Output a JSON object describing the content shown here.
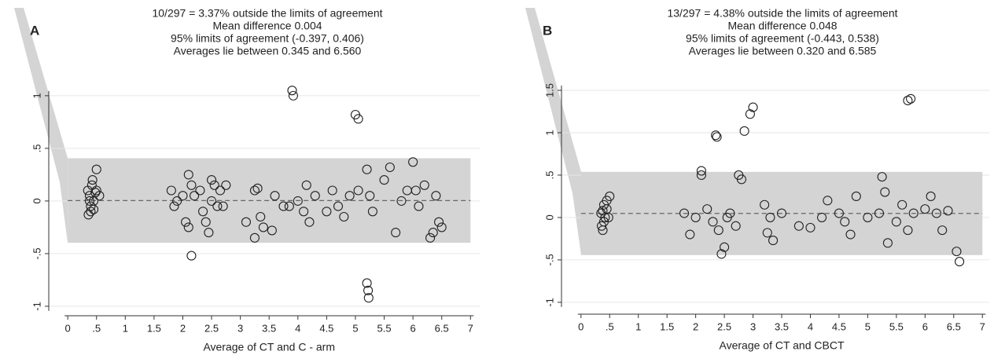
{
  "chart_data": [
    {
      "type": "scatter",
      "panel_label": "A",
      "annotations": [
        "10/297 =   3.37% outside the limits of agreement",
        "Mean difference  0.004",
        "95% limits of agreement (-0.397, 0.406)",
        "Averages lie between 0.345 and 6.560"
      ],
      "xlabel": "Average of CT and C - arm",
      "x": [
        0.35,
        0.38,
        0.4,
        0.42,
        0.45,
        0.4,
        0.36,
        0.48,
        0.5,
        0.55,
        0.43,
        0.38,
        0.5,
        0.45,
        1.8,
        1.85,
        1.9,
        2.0,
        2.05,
        2.1,
        2.1,
        2.15,
        2.15,
        2.2,
        2.3,
        2.35,
        2.4,
        2.45,
        2.5,
        2.5,
        2.55,
        2.6,
        2.65,
        2.7,
        2.75,
        3.1,
        3.25,
        3.25,
        3.3,
        3.35,
        3.4,
        3.55,
        3.6,
        3.75,
        3.9,
        3.92,
        3.85,
        4.0,
        4.1,
        4.15,
        4.2,
        4.3,
        4.5,
        4.6,
        4.7,
        4.8,
        4.9,
        5.0,
        5.05,
        5.05,
        5.2,
        5.22,
        5.23,
        5.2,
        5.25,
        5.3,
        5.5,
        5.6,
        5.7,
        5.8,
        5.9,
        6.0,
        6.05,
        6.1,
        6.2,
        6.3,
        6.35,
        6.4,
        6.45,
        6.5
      ],
      "values": [
        0.1,
        0.05,
        -0.1,
        0.15,
        0.0,
        -0.05,
        -0.13,
        0.08,
        0.3,
        0.05,
        0.2,
        0.0,
        0.1,
        -0.08,
        0.1,
        -0.05,
        0.0,
        0.05,
        -0.2,
        -0.25,
        0.25,
        0.15,
        -0.52,
        0.05,
        0.1,
        -0.1,
        -0.2,
        -0.3,
        0.2,
        0.0,
        0.15,
        -0.05,
        0.1,
        -0.05,
        0.15,
        -0.2,
        0.1,
        -0.35,
        0.12,
        -0.15,
        -0.25,
        -0.28,
        0.05,
        -0.05,
        1.05,
        1.0,
        -0.05,
        0.0,
        -0.1,
        0.15,
        -0.2,
        0.05,
        -0.1,
        0.1,
        -0.05,
        -0.15,
        0.05,
        0.82,
        0.78,
        0.1,
        -0.78,
        -0.85,
        -0.92,
        0.3,
        0.05,
        -0.1,
        0.2,
        0.32,
        -0.3,
        0.0,
        0.1,
        0.37,
        0.1,
        -0.05,
        0.15,
        -0.35,
        -0.3,
        0.05,
        -0.2,
        -0.25
      ],
      "mean_line": 0.004,
      "limits": [
        -0.397,
        0.406
      ],
      "xlim": [
        -0.33,
        7.16
      ],
      "ylim": [
        -1.09,
        1.76
      ],
      "xticks": [
        0,
        {
          "value": 0.5,
          "label": ".5"
        },
        1,
        1.5,
        2,
        2.5,
        3,
        3.5,
        4,
        4.5,
        5,
        5.5,
        6,
        6.5,
        7
      ],
      "yticks": [
        -1,
        {
          "value": -0.5,
          "label": "-.5"
        },
        0,
        {
          "value": 0.5,
          "label": ".5"
        },
        1
      ],
      "grid": true,
      "color": "#222222",
      "band_color": "#d4d4d4"
    },
    {
      "type": "scatter",
      "panel_label": "B",
      "annotations": [
        "13/297 =   4.38% outside the limits of agreement",
        "Mean difference  0.048",
        "95% limits of agreement (-0.443, 0.538)",
        "Averages lie between 0.320 and 6.585"
      ],
      "xlabel": "Average of CT and CBCT",
      "x": [
        0.35,
        0.38,
        0.4,
        0.42,
        0.45,
        0.4,
        0.5,
        0.45,
        0.38,
        0.48,
        0.36,
        1.8,
        1.9,
        2.0,
        2.1,
        2.1,
        2.2,
        2.3,
        2.35,
        2.37,
        2.4,
        2.45,
        2.5,
        2.55,
        2.6,
        2.7,
        2.75,
        2.8,
        2.85,
        2.95,
        3.0,
        3.2,
        3.25,
        3.35,
        3.3,
        3.5,
        3.8,
        4.0,
        4.2,
        4.3,
        4.5,
        4.6,
        4.7,
        4.8,
        5.0,
        5.2,
        5.25,
        5.3,
        5.35,
        5.5,
        5.6,
        5.7,
        5.75,
        5.7,
        5.8,
        6.0,
        6.1,
        6.2,
        6.3,
        6.4,
        6.55,
        6.6
      ],
      "values": [
        0.05,
        -0.15,
        0.15,
        0.0,
        0.1,
        -0.05,
        0.25,
        0.2,
        0.08,
        0.0,
        -0.1,
        0.05,
        -0.2,
        0.0,
        0.55,
        0.5,
        0.1,
        -0.05,
        0.97,
        0.95,
        -0.15,
        -0.43,
        -0.35,
        0.0,
        0.05,
        -0.1,
        0.5,
        0.45,
        1.02,
        1.22,
        1.3,
        0.15,
        -0.18,
        -0.27,
        0.0,
        0.05,
        -0.1,
        -0.12,
        0.0,
        0.2,
        0.05,
        -0.05,
        -0.2,
        0.25,
        0.0,
        0.05,
        0.48,
        0.3,
        -0.3,
        -0.05,
        0.15,
        1.38,
        1.4,
        -0.15,
        0.05,
        0.1,
        0.25,
        0.05,
        -0.15,
        0.08,
        -0.4,
        -0.52
      ],
      "mean_line": 0.048,
      "limits": [
        -0.443,
        0.538
      ],
      "xlim": [
        -0.34,
        7.12
      ],
      "ylim": [
        -1.14,
        2.38
      ],
      "xticks": [
        0,
        {
          "value": 0.5,
          "label": ".5"
        },
        1,
        1.5,
        2,
        2.5,
        3,
        3.5,
        4,
        4.5,
        5,
        5.5,
        6,
        6.5,
        7
      ],
      "yticks": [
        -1,
        {
          "value": -0.5,
          "label": "-.5"
        },
        0,
        {
          "value": 0.5,
          "label": ".5"
        },
        1,
        1.5
      ],
      "grid": true,
      "color": "#222222",
      "band_color": "#d4d4d4"
    }
  ]
}
